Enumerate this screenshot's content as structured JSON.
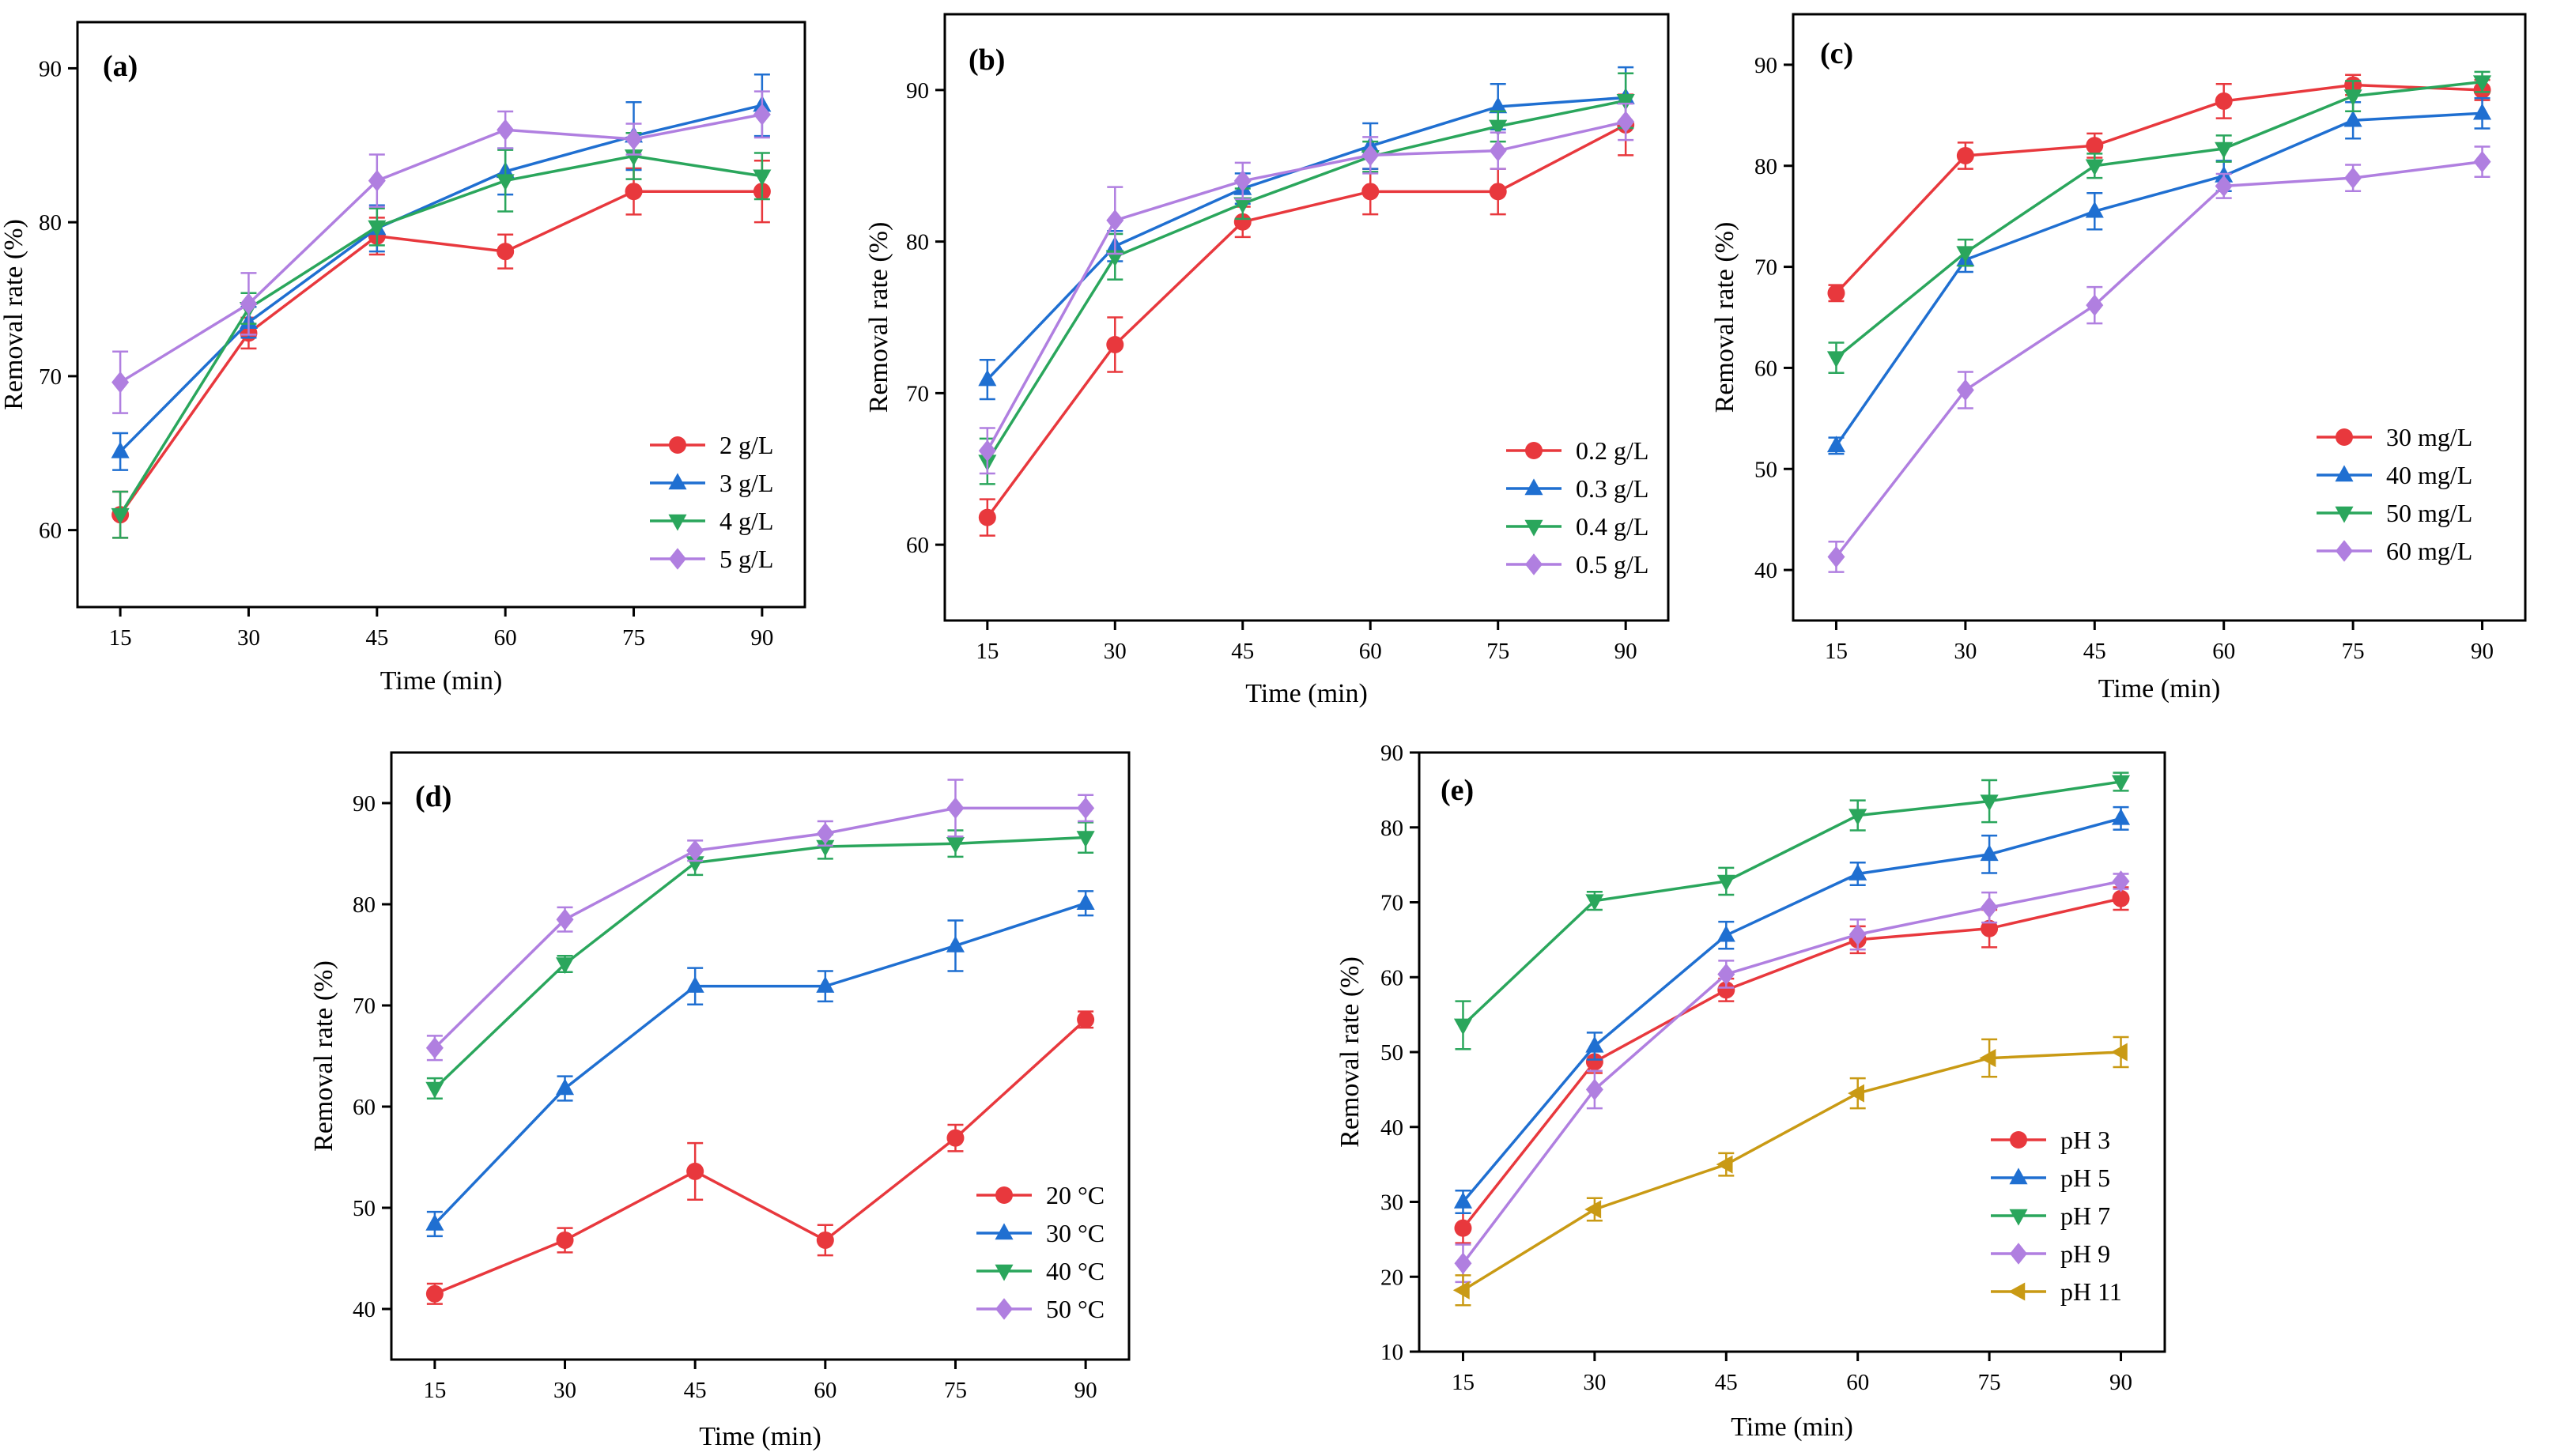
{
  "figure": {
    "colors": {
      "red": "#e8383d",
      "blue": "#1f6fd1",
      "green": "#2aa65c",
      "purple": "#b07fe0",
      "gold": "#c99a14"
    }
  },
  "chart_data": [
    {
      "panel_label": "(a)",
      "type": "line",
      "xlabel": "Time (min)",
      "ylabel": "Removal rate (%)",
      "x": [
        15,
        30,
        45,
        60,
        75,
        90
      ],
      "xlim": [
        10,
        95
      ],
      "ylim": [
        55,
        93
      ],
      "yticks": [
        60,
        70,
        80,
        90
      ],
      "series": [
        {
          "name": "2 g/L",
          "color": "#e8383d",
          "marker": "circle",
          "values": [
            61.0,
            72.8,
            79.1,
            78.1,
            82.0,
            82.0
          ],
          "errors": [
            1.5,
            1.0,
            1.2,
            1.1,
            1.5,
            2.0
          ]
        },
        {
          "name": "3 g/L",
          "color": "#1f6fd1",
          "marker": "triangle-up",
          "values": [
            65.1,
            73.5,
            79.6,
            83.3,
            85.6,
            87.6
          ],
          "errors": [
            1.2,
            1.0,
            1.5,
            1.5,
            2.2,
            2.0
          ]
        },
        {
          "name": "4 g/L",
          "color": "#2aa65c",
          "marker": "triangle-down",
          "values": [
            61.0,
            74.4,
            79.7,
            82.7,
            84.3,
            83.0
          ],
          "errors": [
            1.5,
            1.0,
            1.2,
            2.0,
            1.5,
            1.5
          ]
        },
        {
          "name": "5 g/L",
          "color": "#b07fe0",
          "marker": "diamond",
          "values": [
            69.6,
            74.7,
            82.7,
            86.0,
            85.4,
            87.0
          ],
          "errors": [
            2.0,
            2.0,
            1.7,
            1.2,
            1.0,
            1.5
          ]
        }
      ]
    },
    {
      "panel_label": "(b)",
      "type": "line",
      "xlabel": "Time (min)",
      "ylabel": "Removal rate (%)",
      "x": [
        15,
        30,
        45,
        60,
        75,
        90
      ],
      "xlim": [
        10,
        95
      ],
      "ylim": [
        55,
        95
      ],
      "yticks": [
        60,
        70,
        80,
        90
      ],
      "series": [
        {
          "name": "0.2 g/L",
          "color": "#e8383d",
          "marker": "circle",
          "values": [
            61.8,
            73.2,
            81.3,
            83.3,
            83.3,
            87.7
          ],
          "errors": [
            1.2,
            1.8,
            1.0,
            1.5,
            1.5,
            2.0
          ]
        },
        {
          "name": "0.3 g/L",
          "color": "#1f6fd1",
          "marker": "triangle-up",
          "values": [
            70.9,
            79.7,
            83.5,
            86.3,
            88.9,
            89.5
          ],
          "errors": [
            1.3,
            1.0,
            1.0,
            1.5,
            1.5,
            2.0
          ]
        },
        {
          "name": "0.4 g/L",
          "color": "#2aa65c",
          "marker": "triangle-down",
          "values": [
            65.5,
            79.0,
            82.5,
            85.6,
            87.6,
            89.3
          ],
          "errors": [
            1.5,
            1.5,
            1.0,
            1.0,
            1.0,
            1.8
          ]
        },
        {
          "name": "0.5 g/L",
          "color": "#b07fe0",
          "marker": "diamond",
          "values": [
            66.2,
            81.4,
            84.0,
            85.7,
            86.0,
            87.9
          ],
          "errors": [
            1.5,
            2.2,
            1.2,
            1.2,
            1.2,
            1.2
          ]
        }
      ]
    },
    {
      "panel_label": "(c)",
      "type": "line",
      "xlabel": "Time (min)",
      "ylabel": "Removal rate (%)",
      "x": [
        15,
        30,
        45,
        60,
        75,
        90
      ],
      "xlim": [
        10,
        95
      ],
      "ylim": [
        35,
        95
      ],
      "yticks": [
        40,
        50,
        60,
        70,
        80,
        90
      ],
      "series": [
        {
          "name": "30 mg/L",
          "color": "#e8383d",
          "marker": "circle",
          "values": [
            67.4,
            81.0,
            82.0,
            86.4,
            88.0,
            87.5
          ],
          "errors": [
            0.8,
            1.3,
            1.2,
            1.7,
            1.0,
            1.0
          ]
        },
        {
          "name": "40 mg/L",
          "color": "#1f6fd1",
          "marker": "triangle-up",
          "values": [
            52.3,
            70.7,
            75.5,
            79.0,
            84.5,
            85.2
          ],
          "errors": [
            0.8,
            1.2,
            1.8,
            1.5,
            1.8,
            1.5
          ]
        },
        {
          "name": "50 mg/L",
          "color": "#2aa65c",
          "marker": "triangle-down",
          "values": [
            61.0,
            71.4,
            80.0,
            81.7,
            86.9,
            88.3
          ],
          "errors": [
            1.5,
            1.3,
            1.2,
            1.3,
            1.5,
            1.0
          ]
        },
        {
          "name": "60 mg/L",
          "color": "#b07fe0",
          "marker": "diamond",
          "values": [
            41.3,
            57.8,
            66.2,
            78.0,
            78.8,
            80.4
          ],
          "errors": [
            1.5,
            1.8,
            1.8,
            1.2,
            1.3,
            1.5
          ]
        }
      ]
    },
    {
      "panel_label": "(d)",
      "type": "line",
      "xlabel": "Time (min)",
      "ylabel": "Removal rate (%)",
      "x": [
        15,
        30,
        45,
        60,
        75,
        90
      ],
      "xlim": [
        10,
        95
      ],
      "ylim": [
        35,
        95
      ],
      "yticks": [
        40,
        50,
        60,
        70,
        80,
        90
      ],
      "series": [
        {
          "name": "20 °C",
          "color": "#e8383d",
          "marker": "circle",
          "values": [
            41.5,
            46.8,
            53.6,
            46.8,
            56.9,
            68.6
          ],
          "errors": [
            1.0,
            1.2,
            2.8,
            1.5,
            1.3,
            0.8
          ]
        },
        {
          "name": "30 °C",
          "color": "#1f6fd1",
          "marker": "triangle-up",
          "values": [
            48.4,
            61.8,
            71.9,
            71.9,
            75.9,
            80.1
          ],
          "errors": [
            1.2,
            1.2,
            1.8,
            1.5,
            2.5,
            1.2
          ]
        },
        {
          "name": "40 °C",
          "color": "#2aa65c",
          "marker": "triangle-down",
          "values": [
            61.8,
            74.1,
            84.1,
            85.7,
            86.0,
            86.6
          ],
          "errors": [
            1.0,
            0.8,
            1.2,
            1.2,
            1.3,
            1.5
          ]
        },
        {
          "name": "50 °C",
          "color": "#b07fe0",
          "marker": "diamond",
          "values": [
            65.8,
            78.5,
            85.3,
            87.0,
            89.5,
            89.5
          ],
          "errors": [
            1.2,
            1.2,
            1.0,
            1.2,
            2.8,
            1.3
          ]
        }
      ]
    },
    {
      "panel_label": "(e)",
      "type": "line",
      "xlabel": "Time (min)",
      "ylabel": "Removal rate (%)",
      "x": [
        15,
        30,
        45,
        60,
        75,
        90
      ],
      "xlim": [
        10,
        95
      ],
      "ylim": [
        10,
        90
      ],
      "yticks": [
        10,
        20,
        30,
        40,
        50,
        60,
        70,
        80,
        90
      ],
      "series": [
        {
          "name": "pH 3",
          "color": "#e8383d",
          "marker": "circle",
          "values": [
            26.5,
            48.7,
            58.3,
            65.0,
            66.5,
            70.5
          ],
          "errors": [
            2.0,
            1.5,
            1.5,
            1.8,
            2.5,
            1.5
          ]
        },
        {
          "name": "pH 5",
          "color": "#1f6fd1",
          "marker": "triangle-up",
          "values": [
            30.0,
            50.8,
            65.6,
            73.8,
            76.4,
            81.2
          ],
          "errors": [
            1.5,
            1.8,
            1.8,
            1.5,
            2.5,
            1.5
          ]
        },
        {
          "name": "pH 7",
          "color": "#2aa65c",
          "marker": "triangle-down",
          "values": [
            53.6,
            70.2,
            72.8,
            81.6,
            83.5,
            86.1
          ],
          "errors": [
            3.2,
            1.2,
            1.8,
            2.0,
            2.8,
            1.2
          ]
        },
        {
          "name": "pH 9",
          "color": "#b07fe0",
          "marker": "diamond",
          "values": [
            21.8,
            45.0,
            60.4,
            65.7,
            69.3,
            72.8
          ],
          "errors": [
            2.5,
            2.5,
            1.8,
            2.0,
            2.0,
            1.0
          ]
        },
        {
          "name": "pH 11",
          "color": "#c99a14",
          "marker": "triangle-left",
          "values": [
            18.2,
            29.0,
            35.0,
            44.5,
            49.2,
            50.0
          ],
          "errors": [
            2.0,
            1.5,
            1.5,
            2.0,
            2.5,
            2.0
          ]
        }
      ]
    }
  ]
}
